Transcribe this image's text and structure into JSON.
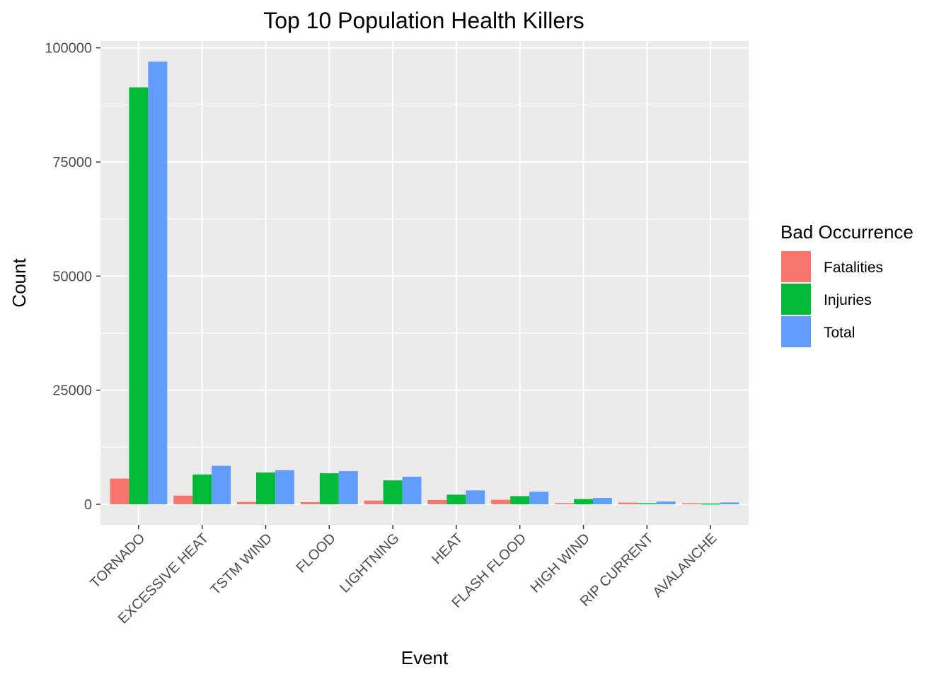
{
  "chart_data": {
    "type": "bar",
    "title": "Top 10 Population Health Killers",
    "xlabel": "Event",
    "ylabel": "Count",
    "categories": [
      "TORNADO",
      "EXCESSIVE HEAT",
      "TSTM WIND",
      "FLOOD",
      "LIGHTNING",
      "HEAT",
      "FLASH FLOOD",
      "HIGH WIND",
      "RIP CURRENT",
      "AVALANCHE"
    ],
    "series": [
      {
        "name": "Fatalities",
        "color": "#F8766D",
        "values": [
          5633,
          1903,
          504,
          470,
          816,
          937,
          978,
          248,
          368,
          224
        ]
      },
      {
        "name": "Injuries",
        "color": "#00BA38",
        "values": [
          91346,
          6525,
          6957,
          6789,
          5230,
          2100,
          1777,
          1137,
          232,
          170
        ]
      },
      {
        "name": "Total",
        "color": "#619CFF",
        "values": [
          96979,
          8428,
          7461,
          7259,
          6046,
          3037,
          2755,
          1385,
          600,
          394
        ]
      }
    ],
    "ylim": [
      -4500,
      101500
    ],
    "yticks": [
      0,
      25000,
      50000,
      75000,
      100000
    ],
    "grid": true,
    "legend": {
      "title": "Bad Occurrence",
      "position": "right"
    }
  }
}
